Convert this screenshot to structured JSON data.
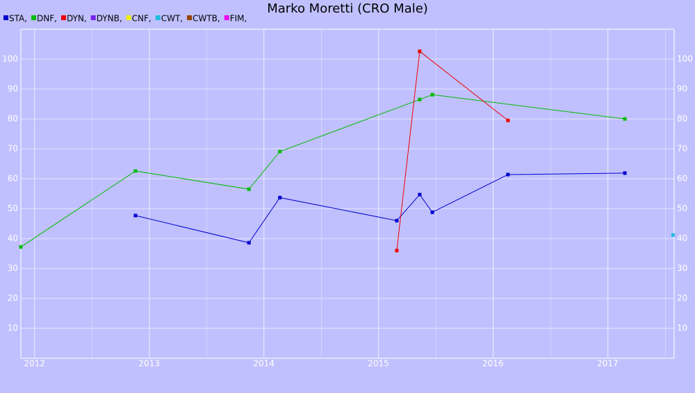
{
  "chart_data": {
    "type": "line",
    "title": "Marko Moretti (CRO Male)",
    "xlim": [
      2011.88,
      2017.58
    ],
    "xticks": [
      2012,
      2013,
      2014,
      2015,
      2016,
      2017
    ],
    "ylim": [
      0,
      110
    ],
    "yticks": [
      10,
      20,
      30,
      40,
      50,
      60,
      70,
      80,
      90,
      100
    ],
    "grid": true,
    "legend": "top-left",
    "series": [
      {
        "name": "STA,",
        "color": "#0000cc",
        "x": [
          2012.88,
          2013.87,
          2014.14,
          2015.16,
          2015.36,
          2015.47,
          2016.13,
          2017.15
        ],
        "values": [
          47.7,
          38.6,
          53.7,
          46.0,
          54.7,
          48.8,
          61.4,
          61.9
        ]
      },
      {
        "name": "DNF,",
        "color": "#00bb00",
        "x": [
          2011.88,
          2012.88,
          2013.87,
          2014.14,
          2015.36,
          2015.47,
          2017.15
        ],
        "values": [
          37.2,
          62.6,
          56.5,
          69.1,
          86.5,
          88.1,
          80.0
        ]
      },
      {
        "name": "DYN,",
        "color": "#ee0000",
        "x": [
          2015.16,
          2015.36,
          2016.13
        ],
        "values": [
          36.0,
          102.6,
          79.5
        ]
      },
      {
        "name": "DYNB,",
        "color": "#7722ee",
        "x": [],
        "values": []
      },
      {
        "name": "CNF,",
        "color": "#eeee00",
        "x": [],
        "values": []
      },
      {
        "name": "CWT,",
        "color": "#22bbdd",
        "x": [
          2017.57
        ],
        "values": [
          41.2
        ]
      },
      {
        "name": "CWTB,",
        "color": "#994400",
        "x": [],
        "values": []
      },
      {
        "name": "FIM,",
        "color": "#ee00ee",
        "x": [],
        "values": []
      }
    ]
  }
}
